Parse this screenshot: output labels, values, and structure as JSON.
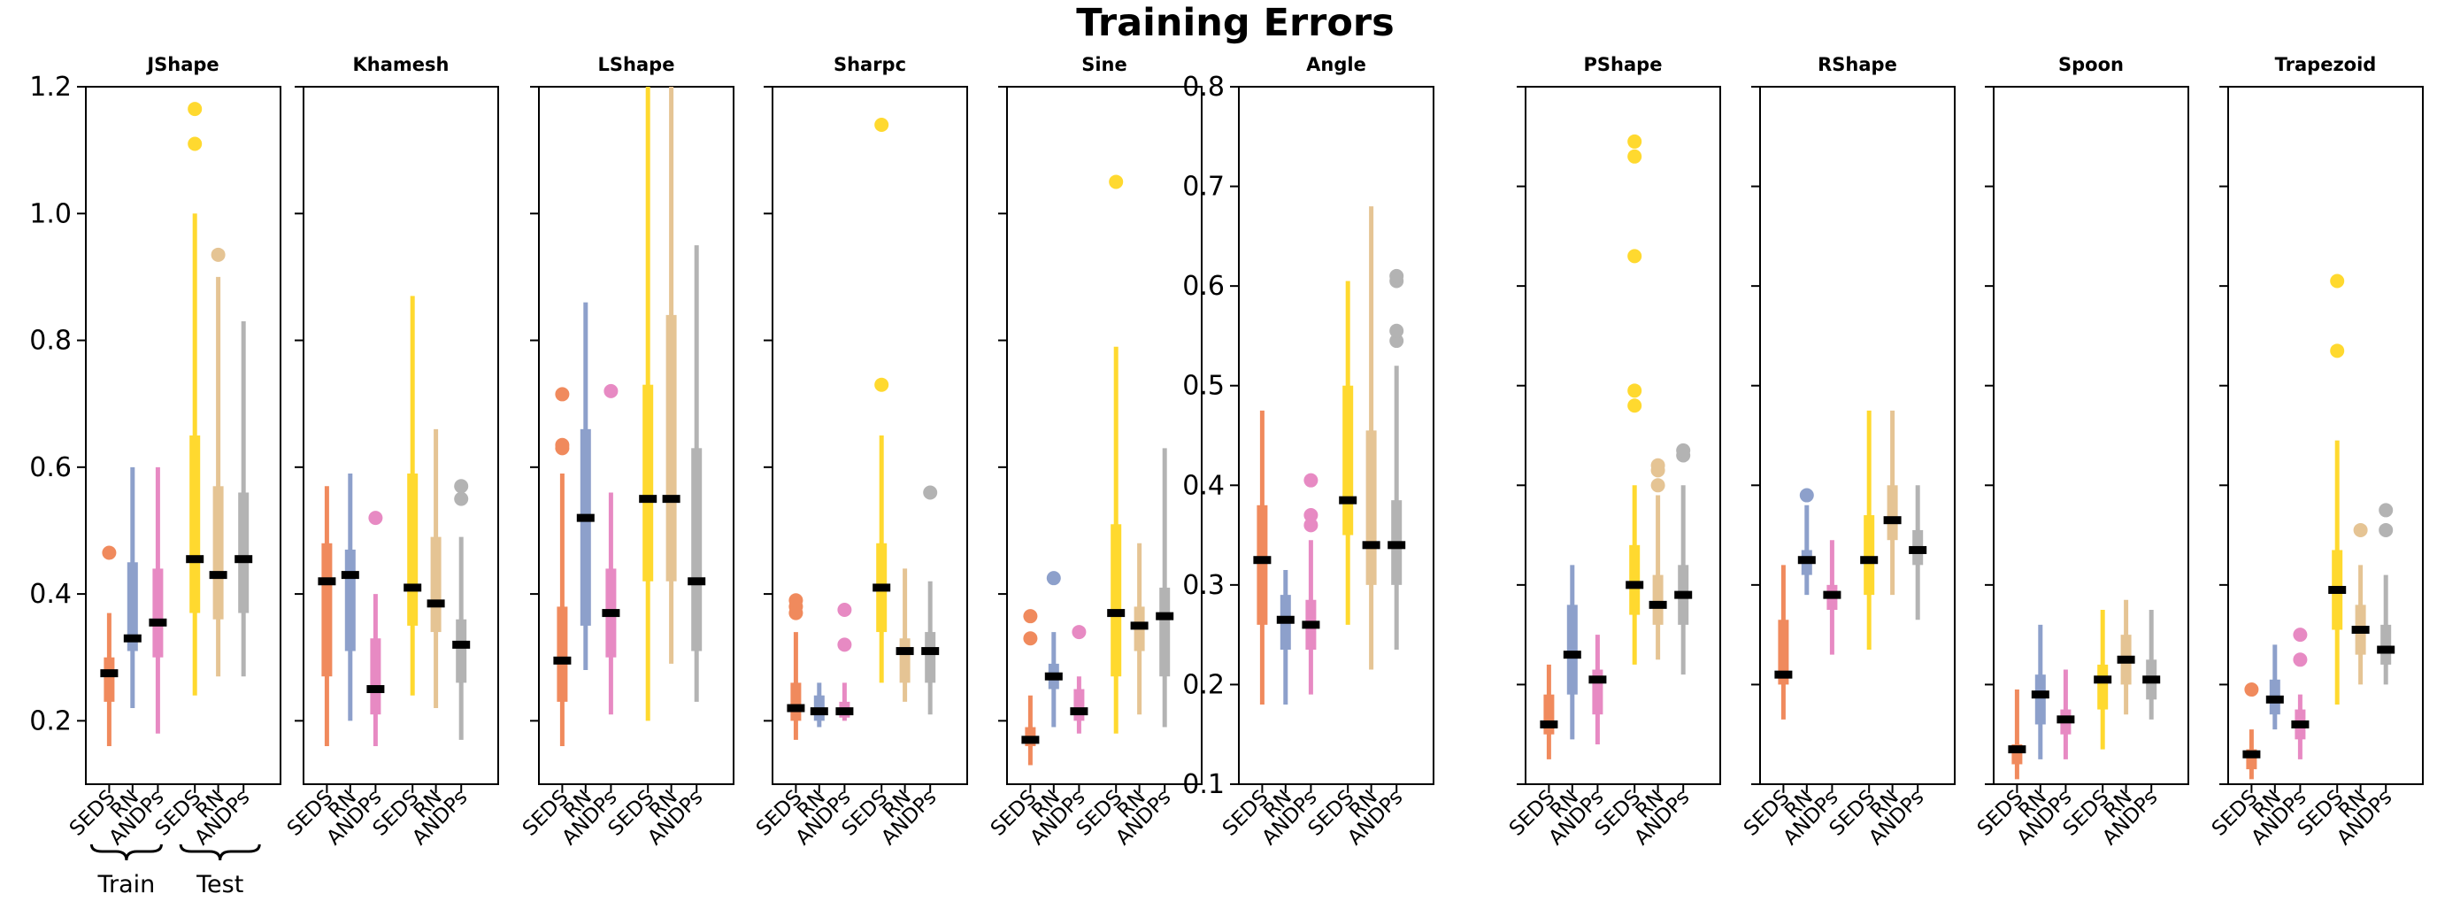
{
  "figure": {
    "title": "Training Errors",
    "colors": {
      "SEDS_train": "#F08A5D",
      "RN_train": "#8DA0CB",
      "ANDPs_train": "#E78AC3",
      "SEDS_test": "#FFD92F",
      "RN_test": "#E5C494",
      "ANDPs_test": "#B3B3B3",
      "median": "#000000"
    },
    "annotations": {
      "train_label": "Train",
      "test_label": "Test"
    }
  },
  "chart_data": [
    {
      "type": "box",
      "title": "JShape",
      "ylim": [
        0.1,
        1.2
      ],
      "yticks": [
        0.2,
        0.4,
        0.6,
        0.8,
        1.0,
        1.2
      ],
      "ytick_labels": [
        "0.2",
        "0.4",
        "0.6",
        "0.8",
        "1.0",
        "1.2"
      ],
      "x_labels": [
        "SEDS",
        "RN",
        "ANDPs",
        "SEDS",
        "RN",
        "ANDPs"
      ],
      "groups": [
        "Train",
        "Train",
        "Train",
        "Test",
        "Test",
        "Test"
      ],
      "boxes": [
        {
          "whislo": 0.16,
          "q1": 0.23,
          "med": 0.275,
          "q3": 0.3,
          "whishi": 0.37,
          "fliers": [
            0.465
          ]
        },
        {
          "whislo": 0.22,
          "q1": 0.31,
          "med": 0.33,
          "q3": 0.45,
          "whishi": 0.6,
          "fliers": []
        },
        {
          "whislo": 0.18,
          "q1": 0.3,
          "med": 0.355,
          "q3": 0.44,
          "whishi": 0.6,
          "fliers": []
        },
        {
          "whislo": 0.24,
          "q1": 0.37,
          "med": 0.455,
          "q3": 0.65,
          "whishi": 1.0,
          "fliers": [
            1.11,
            1.165
          ]
        },
        {
          "whislo": 0.27,
          "q1": 0.36,
          "med": 0.43,
          "q3": 0.57,
          "whishi": 0.9,
          "fliers": [
            0.935
          ]
        },
        {
          "whislo": 0.27,
          "q1": 0.37,
          "med": 0.455,
          "q3": 0.56,
          "whishi": 0.83,
          "fliers": []
        }
      ]
    },
    {
      "type": "box",
      "title": "Khamesh",
      "ylim": [
        0.1,
        1.2
      ],
      "x_labels": [
        "SEDS",
        "RN",
        "ANDPs",
        "SEDS",
        "RN",
        "ANDPs"
      ],
      "groups": [
        "Train",
        "Train",
        "Train",
        "Test",
        "Test",
        "Test"
      ],
      "boxes": [
        {
          "whislo": 0.16,
          "q1": 0.27,
          "med": 0.42,
          "q3": 0.48,
          "whishi": 0.57,
          "fliers": []
        },
        {
          "whislo": 0.2,
          "q1": 0.31,
          "med": 0.43,
          "q3": 0.47,
          "whishi": 0.59,
          "fliers": []
        },
        {
          "whislo": 0.16,
          "q1": 0.21,
          "med": 0.25,
          "q3": 0.33,
          "whishi": 0.4,
          "fliers": [
            0.52
          ]
        },
        {
          "whislo": 0.24,
          "q1": 0.35,
          "med": 0.41,
          "q3": 0.59,
          "whishi": 0.87,
          "fliers": []
        },
        {
          "whislo": 0.22,
          "q1": 0.34,
          "med": 0.385,
          "q3": 0.49,
          "whishi": 0.66,
          "fliers": []
        },
        {
          "whislo": 0.17,
          "q1": 0.26,
          "med": 0.32,
          "q3": 0.36,
          "whishi": 0.49,
          "fliers": [
            0.55,
            0.57
          ]
        }
      ]
    },
    {
      "type": "box",
      "title": "LShape",
      "ylim": [
        0.1,
        1.2
      ],
      "x_labels": [
        "SEDS",
        "RN",
        "ANDPs",
        "SEDS",
        "RN",
        "ANDPs"
      ],
      "groups": [
        "Train",
        "Train",
        "Train",
        "Test",
        "Test",
        "Test"
      ],
      "boxes": [
        {
          "whislo": 0.16,
          "q1": 0.23,
          "med": 0.295,
          "q3": 0.38,
          "whishi": 0.59,
          "fliers": [
            0.63,
            0.635,
            0.715
          ]
        },
        {
          "whislo": 0.28,
          "q1": 0.35,
          "med": 0.52,
          "q3": 0.66,
          "whishi": 0.86,
          "fliers": []
        },
        {
          "whislo": 0.21,
          "q1": 0.3,
          "med": 0.37,
          "q3": 0.44,
          "whishi": 0.56,
          "fliers": [
            0.72
          ]
        },
        {
          "whislo": 0.2,
          "q1": 0.42,
          "med": 0.55,
          "q3": 0.73,
          "whishi": 1.2,
          "fliers": []
        },
        {
          "whislo": 0.29,
          "q1": 0.42,
          "med": 0.55,
          "q3": 0.84,
          "whishi": 1.2,
          "fliers": []
        },
        {
          "whislo": 0.23,
          "q1": 0.31,
          "med": 0.42,
          "q3": 0.63,
          "whishi": 0.95,
          "fliers": []
        }
      ]
    },
    {
      "type": "box",
      "title": "Sharpc",
      "ylim": [
        0.1,
        1.2
      ],
      "x_labels": [
        "SEDS",
        "RN",
        "ANDPs",
        "SEDS",
        "RN",
        "ANDPs"
      ],
      "groups": [
        "Train",
        "Train",
        "Train",
        "Test",
        "Test",
        "Test"
      ],
      "boxes": [
        {
          "whislo": 0.17,
          "q1": 0.2,
          "med": 0.22,
          "q3": 0.26,
          "whishi": 0.34,
          "fliers": [
            0.37,
            0.38,
            0.39
          ]
        },
        {
          "whislo": 0.19,
          "q1": 0.2,
          "med": 0.215,
          "q3": 0.24,
          "whishi": 0.26,
          "fliers": []
        },
        {
          "whislo": 0.2,
          "q1": 0.205,
          "med": 0.215,
          "q3": 0.23,
          "whishi": 0.26,
          "fliers": [
            0.32,
            0.375
          ]
        },
        {
          "whislo": 0.26,
          "q1": 0.34,
          "med": 0.41,
          "q3": 0.48,
          "whishi": 0.65,
          "fliers": [
            0.73,
            1.14
          ]
        },
        {
          "whislo": 0.23,
          "q1": 0.26,
          "med": 0.31,
          "q3": 0.33,
          "whishi": 0.44,
          "fliers": []
        },
        {
          "whislo": 0.21,
          "q1": 0.26,
          "med": 0.31,
          "q3": 0.34,
          "whishi": 0.42,
          "fliers": [
            0.56
          ]
        }
      ]
    },
    {
      "type": "box",
      "title": "Sine",
      "ylim": [
        0.1,
        1.2
      ],
      "x_labels": [
        "SEDS",
        "RN",
        "ANDPs",
        "SEDS",
        "RN",
        "ANDPs"
      ],
      "groups": [
        "Train",
        "Train",
        "Train",
        "Test",
        "Test",
        "Test"
      ],
      "boxes": [
        {
          "whislo": 0.13,
          "q1": 0.16,
          "med": 0.17,
          "q3": 0.19,
          "whishi": 0.24,
          "fliers": [
            0.33,
            0.365
          ]
        },
        {
          "whislo": 0.19,
          "q1": 0.25,
          "med": 0.27,
          "q3": 0.29,
          "whishi": 0.34,
          "fliers": [
            0.425
          ]
        },
        {
          "whislo": 0.18,
          "q1": 0.2,
          "med": 0.215,
          "q3": 0.25,
          "whishi": 0.27,
          "fliers": [
            0.34
          ]
        },
        {
          "whislo": 0.18,
          "q1": 0.27,
          "med": 0.37,
          "q3": 0.51,
          "whishi": 0.79,
          "fliers": [
            1.05
          ]
        },
        {
          "whislo": 0.21,
          "q1": 0.31,
          "med": 0.35,
          "q3": 0.38,
          "whishi": 0.48,
          "fliers": []
        },
        {
          "whislo": 0.19,
          "q1": 0.27,
          "med": 0.365,
          "q3": 0.41,
          "whishi": 0.63,
          "fliers": []
        }
      ]
    },
    {
      "type": "box",
      "title": "Angle",
      "ylim": [
        0.1,
        0.8
      ],
      "yticks": [
        0.1,
        0.2,
        0.3,
        0.4,
        0.5,
        0.6,
        0.7,
        0.8
      ],
      "ytick_labels": [
        "0.1",
        "0.2",
        "0.3",
        "0.4",
        "0.5",
        "0.6",
        "0.7",
        "0.8"
      ],
      "x_labels": [
        "SEDS",
        "RN",
        "ANDPs",
        "SEDS",
        "RN",
        "ANDPs"
      ],
      "groups": [
        "Train",
        "Train",
        "Train",
        "Test",
        "Test",
        "Test"
      ],
      "boxes": [
        {
          "whislo": 0.18,
          "q1": 0.26,
          "med": 0.325,
          "q3": 0.38,
          "whishi": 0.475,
          "fliers": []
        },
        {
          "whislo": 0.18,
          "q1": 0.235,
          "med": 0.265,
          "q3": 0.29,
          "whishi": 0.315,
          "fliers": []
        },
        {
          "whislo": 0.19,
          "q1": 0.235,
          "med": 0.26,
          "q3": 0.285,
          "whishi": 0.345,
          "fliers": [
            0.36,
            0.37,
            0.405
          ]
        },
        {
          "whislo": 0.26,
          "q1": 0.35,
          "med": 0.385,
          "q3": 0.5,
          "whishi": 0.605,
          "fliers": []
        },
        {
          "whislo": 0.215,
          "q1": 0.3,
          "med": 0.34,
          "q3": 0.455,
          "whishi": 0.68,
          "fliers": []
        },
        {
          "whislo": 0.235,
          "q1": 0.3,
          "med": 0.34,
          "q3": 0.385,
          "whishi": 0.52,
          "fliers": [
            0.545,
            0.555,
            0.605,
            0.61
          ]
        }
      ]
    },
    {
      "type": "box",
      "title": "PShape",
      "ylim": [
        0.1,
        0.8
      ],
      "x_labels": [
        "SEDS",
        "RN",
        "ANDPs",
        "SEDS",
        "RN",
        "ANDPs"
      ],
      "groups": [
        "Train",
        "Train",
        "Train",
        "Test",
        "Test",
        "Test"
      ],
      "boxes": [
        {
          "whislo": 0.125,
          "q1": 0.15,
          "med": 0.16,
          "q3": 0.19,
          "whishi": 0.22,
          "fliers": []
        },
        {
          "whislo": 0.145,
          "q1": 0.19,
          "med": 0.23,
          "q3": 0.28,
          "whishi": 0.32,
          "fliers": []
        },
        {
          "whislo": 0.14,
          "q1": 0.17,
          "med": 0.205,
          "q3": 0.215,
          "whishi": 0.25,
          "fliers": []
        },
        {
          "whislo": 0.22,
          "q1": 0.27,
          "med": 0.3,
          "q3": 0.34,
          "whishi": 0.4,
          "fliers": [
            0.48,
            0.495,
            0.63,
            0.73,
            0.745
          ]
        },
        {
          "whislo": 0.225,
          "q1": 0.26,
          "med": 0.28,
          "q3": 0.31,
          "whishi": 0.39,
          "fliers": [
            0.4,
            0.415,
            0.42
          ]
        },
        {
          "whislo": 0.21,
          "q1": 0.26,
          "med": 0.29,
          "q3": 0.32,
          "whishi": 0.4,
          "fliers": [
            0.43,
            0.435
          ]
        }
      ]
    },
    {
      "type": "box",
      "title": "RShape",
      "ylim": [
        0.1,
        0.8
      ],
      "x_labels": [
        "SEDS",
        "RN",
        "ANDPs",
        "SEDS",
        "RN",
        "ANDPs"
      ],
      "groups": [
        "Train",
        "Train",
        "Train",
        "Test",
        "Test",
        "Test"
      ],
      "boxes": [
        {
          "whislo": 0.165,
          "q1": 0.2,
          "med": 0.21,
          "q3": 0.265,
          "whishi": 0.32,
          "fliers": []
        },
        {
          "whislo": 0.29,
          "q1": 0.31,
          "med": 0.325,
          "q3": 0.335,
          "whishi": 0.38,
          "fliers": [
            0.39
          ]
        },
        {
          "whislo": 0.23,
          "q1": 0.275,
          "med": 0.29,
          "q3": 0.3,
          "whishi": 0.345,
          "fliers": []
        },
        {
          "whislo": 0.235,
          "q1": 0.29,
          "med": 0.325,
          "q3": 0.37,
          "whishi": 0.475,
          "fliers": []
        },
        {
          "whislo": 0.29,
          "q1": 0.345,
          "med": 0.365,
          "q3": 0.4,
          "whishi": 0.475,
          "fliers": []
        },
        {
          "whislo": 0.265,
          "q1": 0.32,
          "med": 0.335,
          "q3": 0.355,
          "whishi": 0.4,
          "fliers": []
        }
      ]
    },
    {
      "type": "box",
      "title": "Spoon",
      "ylim": [
        0.1,
        0.8
      ],
      "x_labels": [
        "SEDS",
        "RN",
        "ANDPs",
        "SEDS",
        "RN",
        "ANDPs"
      ],
      "groups": [
        "Train",
        "Train",
        "Train",
        "Test",
        "Test",
        "Test"
      ],
      "boxes": [
        {
          "whislo": 0.105,
          "q1": 0.12,
          "med": 0.135,
          "q3": 0.14,
          "whishi": 0.195,
          "fliers": []
        },
        {
          "whislo": 0.125,
          "q1": 0.16,
          "med": 0.19,
          "q3": 0.21,
          "whishi": 0.26,
          "fliers": []
        },
        {
          "whislo": 0.125,
          "q1": 0.15,
          "med": 0.165,
          "q3": 0.175,
          "whishi": 0.215,
          "fliers": []
        },
        {
          "whislo": 0.135,
          "q1": 0.175,
          "med": 0.205,
          "q3": 0.22,
          "whishi": 0.275,
          "fliers": []
        },
        {
          "whislo": 0.17,
          "q1": 0.2,
          "med": 0.225,
          "q3": 0.25,
          "whishi": 0.285,
          "fliers": []
        },
        {
          "whislo": 0.165,
          "q1": 0.185,
          "med": 0.205,
          "q3": 0.225,
          "whishi": 0.275,
          "fliers": []
        }
      ]
    },
    {
      "type": "box",
      "title": "Trapezoid",
      "ylim": [
        0.1,
        0.8
      ],
      "x_labels": [
        "SEDS",
        "RN",
        "ANDPs",
        "SEDS",
        "RN",
        "ANDPs"
      ],
      "groups": [
        "Train",
        "Train",
        "Train",
        "Test",
        "Test",
        "Test"
      ],
      "boxes": [
        {
          "whislo": 0.105,
          "q1": 0.115,
          "med": 0.13,
          "q3": 0.135,
          "whishi": 0.155,
          "fliers": [
            0.195
          ]
        },
        {
          "whislo": 0.155,
          "q1": 0.17,
          "med": 0.185,
          "q3": 0.205,
          "whishi": 0.24,
          "fliers": []
        },
        {
          "whislo": 0.125,
          "q1": 0.145,
          "med": 0.16,
          "q3": 0.175,
          "whishi": 0.19,
          "fliers": [
            0.225,
            0.25
          ]
        },
        {
          "whislo": 0.18,
          "q1": 0.255,
          "med": 0.295,
          "q3": 0.335,
          "whishi": 0.445,
          "fliers": [
            0.535,
            0.605
          ]
        },
        {
          "whislo": 0.2,
          "q1": 0.23,
          "med": 0.255,
          "q3": 0.28,
          "whishi": 0.32,
          "fliers": [
            0.355
          ]
        },
        {
          "whislo": 0.2,
          "q1": 0.22,
          "med": 0.235,
          "q3": 0.26,
          "whishi": 0.31,
          "fliers": [
            0.355,
            0.375
          ]
        }
      ]
    }
  ]
}
